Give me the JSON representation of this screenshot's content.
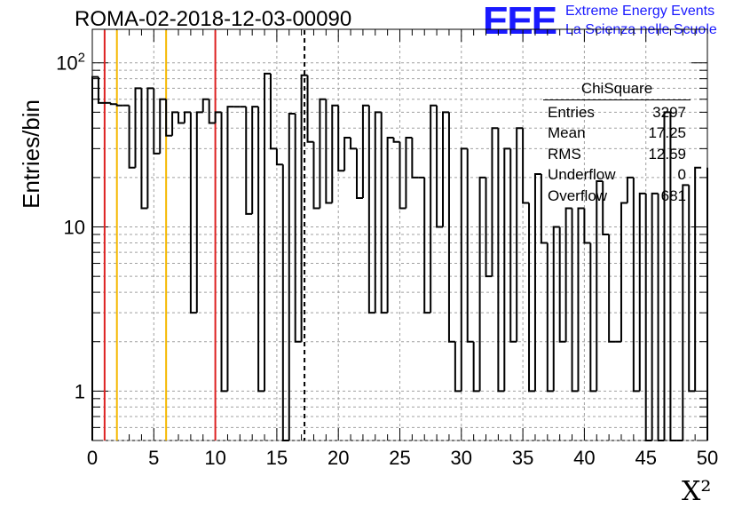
{
  "chart_data": {
    "type": "bar",
    "title": "ROMA-02-2018-12-03-00090",
    "xlabel": "X²",
    "ylabel": "Entries/bin",
    "xlim": [
      0,
      50
    ],
    "ylim": [
      0.5,
      160
    ],
    "y_scale": "log",
    "grid": true,
    "x_ticks": [
      "0",
      "5",
      "10",
      "15",
      "20",
      "25",
      "30",
      "35",
      "40",
      "45",
      "50"
    ],
    "y_ticks": [
      "1",
      "10",
      "10²"
    ],
    "bin_width": 0.5,
    "values": [
      82,
      57,
      57,
      56,
      55,
      55,
      23,
      70,
      13,
      70,
      28,
      60,
      36,
      50,
      43,
      50,
      3,
      50,
      60,
      43,
      50,
      1,
      54,
      54,
      54,
      12,
      54,
      1,
      86,
      30,
      24,
      0.3,
      49,
      2,
      84,
      33,
      13,
      60,
      14,
      55,
      22,
      35,
      30,
      15,
      55,
      3,
      50,
      3,
      35,
      33,
      13,
      35,
      20,
      20,
      3,
      55,
      10,
      50,
      2,
      1,
      30,
      2,
      1,
      20,
      5,
      40,
      1,
      30,
      2,
      40,
      14,
      1,
      21,
      8,
      1,
      10,
      2,
      13,
      1,
      13,
      8,
      1,
      19,
      9,
      2,
      2,
      14,
      20,
      1,
      16,
      0.3,
      16,
      0.3,
      50,
      0.3,
      0.3,
      18,
      1,
      23
    ],
    "stats_box": {
      "name": "ChiSquare",
      "entries": [
        {
          "label": "Entries",
          "value": "3297"
        },
        {
          "label": "Mean",
          "value": "17.25"
        },
        {
          "label": "RMS",
          "value": "12.59"
        },
        {
          "label": "Underflow",
          "value": "0"
        },
        {
          "label": "Overflow",
          "value": "681"
        }
      ]
    },
    "vertical_lines": [
      {
        "x": 1,
        "color": "#dd2222",
        "style": "solid"
      },
      {
        "x": 2,
        "color": "#f5b800",
        "style": "solid"
      },
      {
        "x": 6,
        "color": "#f5b800",
        "style": "solid"
      },
      {
        "x": 10,
        "color": "#dd2222",
        "style": "solid"
      },
      {
        "x": 17.25,
        "color": "#000000",
        "style": "dashed"
      }
    ],
    "line_color": "#000000"
  },
  "logo": {
    "mark": "EEE",
    "line1": "Extreme Energy Events",
    "line2": "La Scienza nelle Scuole",
    "color": "#1a1aff"
  }
}
